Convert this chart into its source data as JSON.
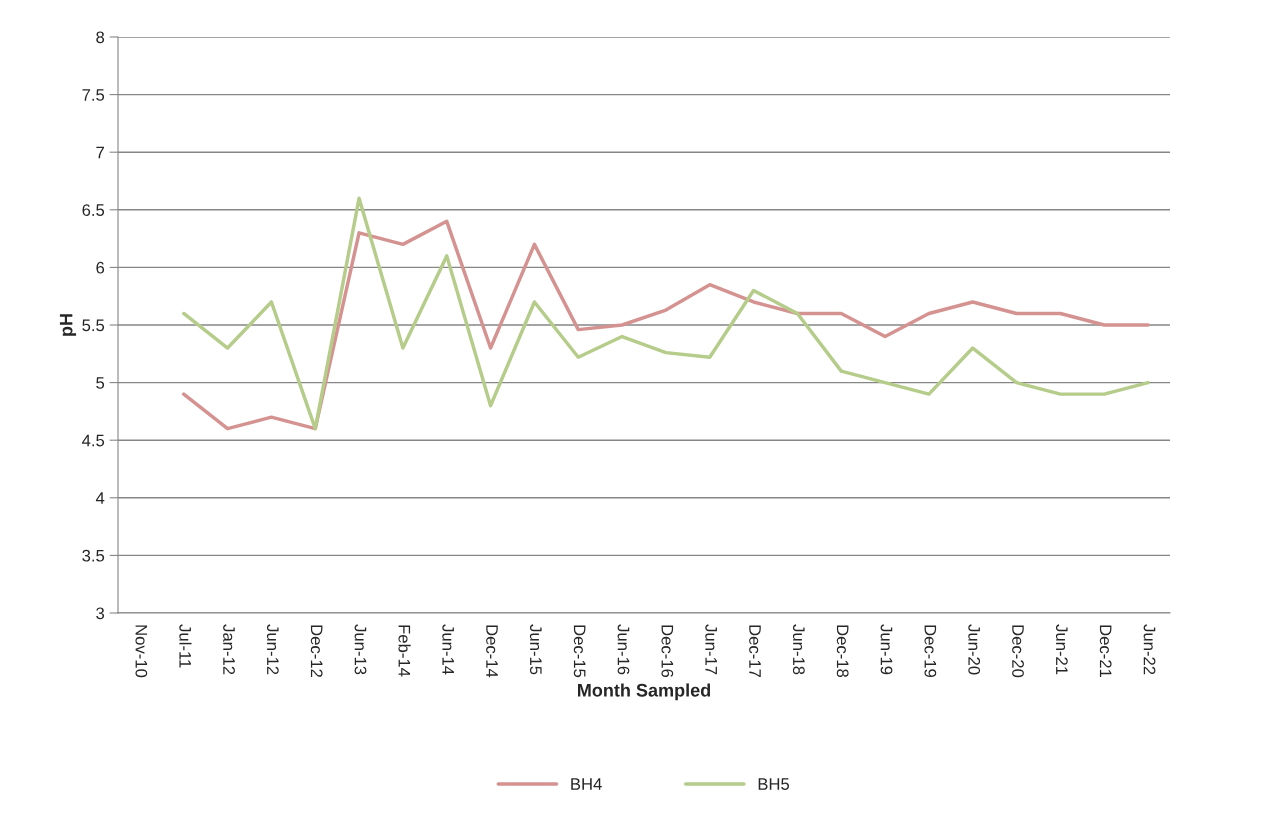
{
  "chart_data": {
    "type": "line",
    "xlabel": "Month Sampled",
    "ylabel": "pH",
    "categories": [
      "Nov-10",
      "Jul-11",
      "Jan-12",
      "Jun-12",
      "Dec-12",
      "Jun-13",
      "Feb-14",
      "Jun-14",
      "Dec-14",
      "Jun-15",
      "Dec-15",
      "Jun-16",
      "Dec-16",
      "Jun-17",
      "Dec-17",
      "Jun-18",
      "Dec-18",
      "Jun-19",
      "Dec-19",
      "Jun-20",
      "Dec-20",
      "Jun-21",
      "Dec-21",
      "Jun-22"
    ],
    "series": [
      {
        "name": "BH4",
        "color": "#d49290",
        "values": [
          null,
          4.9,
          4.6,
          4.7,
          4.6,
          6.3,
          6.2,
          6.4,
          5.3,
          6.2,
          5.46,
          5.5,
          5.63,
          5.85,
          5.7,
          5.6,
          5.6,
          5.4,
          5.6,
          5.7,
          5.6,
          5.6,
          5.5,
          5.5
        ]
      },
      {
        "name": "BH5",
        "color": "#b5cc8a",
        "values": [
          null,
          5.6,
          5.3,
          5.7,
          4.6,
          6.6,
          5.3,
          6.1,
          4.8,
          5.7,
          5.22,
          5.4,
          5.26,
          5.22,
          5.8,
          5.6,
          5.1,
          5.0,
          4.9,
          5.3,
          5.0,
          4.9,
          4.9,
          5.0
        ]
      }
    ],
    "ylim": [
      3,
      8
    ],
    "yticks": [
      3,
      3.5,
      4,
      4.5,
      5,
      5.5,
      6,
      6.5,
      7,
      7.5,
      8
    ],
    "grid": "y",
    "legend": "bottom",
    "marker": "none",
    "line_style": "solid"
  }
}
